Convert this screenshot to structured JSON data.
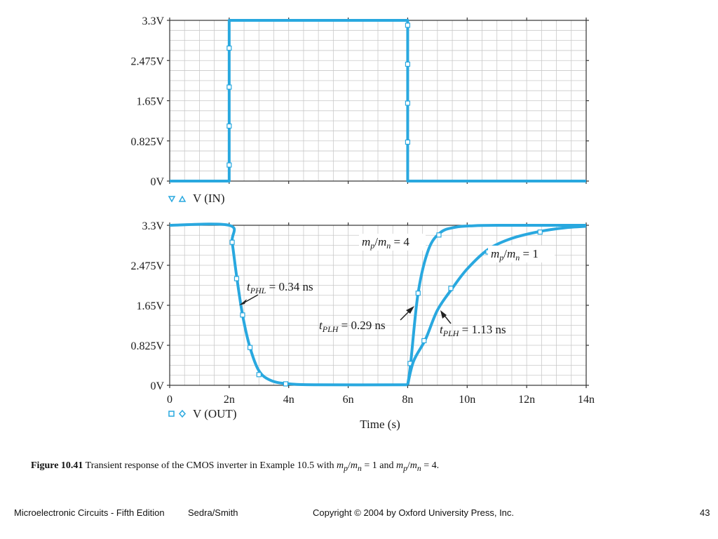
{
  "colors": {
    "trace": "#29a8df",
    "grid": "#c9c9c9",
    "axis": "#333333"
  },
  "chart_data": [
    {
      "type": "line",
      "panel": "input",
      "yticks": [
        "0V",
        "0.825V",
        "1.65V",
        "2.475V",
        "3.3V"
      ],
      "ytick_values": [
        0,
        0.825,
        1.65,
        2.475,
        3.3
      ],
      "xlim": [
        0,
        14
      ],
      "ylim": [
        0,
        3.3
      ],
      "grid": true,
      "legend": "V (IN)",
      "legend_markers": [
        "inverted-triangle",
        "triangle"
      ],
      "series": [
        {
          "x": [
            0,
            2,
            2,
            8,
            8,
            14
          ],
          "y": [
            0,
            0,
            3.3,
            3.3,
            0,
            0
          ],
          "marker_x": [
            2,
            2,
            2,
            2,
            8,
            8,
            8,
            8
          ],
          "marker_y": [
            0.33,
            1.13,
            1.93,
            2.73,
            3.2,
            2.4,
            1.6,
            0.8
          ]
        }
      ]
    },
    {
      "type": "line",
      "panel": "output",
      "xticks": [
        "0",
        "2n",
        "4n",
        "6n",
        "8n",
        "10n",
        "12n",
        "14n"
      ],
      "xtick_values": [
        0,
        2,
        4,
        6,
        8,
        10,
        12,
        14
      ],
      "yticks": [
        "0V",
        "0.825V",
        "1.65V",
        "2.475V",
        "3.3V"
      ],
      "ytick_values": [
        0,
        0.825,
        1.65,
        2.475,
        3.3
      ],
      "xlabel": "Time (s)",
      "xlim": [
        0,
        14
      ],
      "ylim": [
        0,
        3.3
      ],
      "grid": true,
      "legend": "V (OUT)",
      "legend_markers": [
        "square",
        "diamond"
      ],
      "series": [
        {
          "x": [
            0,
            2,
            2.1,
            2.25,
            2.45,
            2.7,
            3.0,
            3.4,
            4.0,
            5.0,
            8.0
          ],
          "y": [
            3.3,
            3.3,
            2.95,
            2.25,
            1.45,
            0.78,
            0.3,
            0.1,
            0.03,
            0.01,
            0.01
          ],
          "marker_x": [
            2.1,
            2.25,
            2.45,
            2.7,
            3.0,
            3.9
          ],
          "marker_y": [
            2.95,
            2.2,
            1.45,
            0.78,
            0.22,
            0.03
          ]
        },
        {
          "x": [
            8,
            8.1,
            8.35,
            8.7,
            9.1,
            9.6,
            10.2,
            11.0,
            14.0
          ],
          "y": [
            0.01,
            0.45,
            1.9,
            2.8,
            3.15,
            3.26,
            3.29,
            3.3,
            3.3
          ],
          "marker_x": [
            8.08,
            8.35,
            9.05
          ],
          "marker_y": [
            0.45,
            1.9,
            3.1
          ]
        },
        {
          "x": [
            8,
            8.2,
            8.6,
            9.0,
            9.5,
            10.0,
            10.7,
            11.5,
            12.5,
            13.3,
            14.0
          ],
          "y": [
            0.01,
            0.5,
            0.95,
            1.55,
            2.0,
            2.4,
            2.8,
            3.03,
            3.18,
            3.25,
            3.28
          ],
          "marker_x": [
            8.55,
            9.45,
            10.7,
            12.45
          ],
          "marker_y": [
            0.92,
            2.0,
            2.75,
            3.16
          ]
        }
      ],
      "annotations": {
        "tphl": {
          "sym": "t",
          "sub": "PHL",
          "rest": " = 0.34 ns",
          "x": 2.47,
          "y": 1.65
        },
        "tplh4": {
          "sym": "t",
          "sub": "PLH",
          "rest": " = 0.29 ns",
          "x": 8.27,
          "y": 1.65
        },
        "tplh1": {
          "sym": "t",
          "sub": "PLH",
          "rest": " = 1.13 ns",
          "x": 9.1,
          "y": 1.65
        },
        "ratio4": {
          "m1": "m",
          "s1": "p",
          "slash": "/",
          "m2": "m",
          "s2": "n",
          "rest": " = 4"
        },
        "ratio1": {
          "m1": "m",
          "s1": "p",
          "slash": "/",
          "m2": "m",
          "s2": "n",
          "rest": " = 1"
        }
      }
    }
  ],
  "caption": {
    "fig": "Figure 10.41",
    "text1": "  Transient response of the CMOS inverter in Example 10.5 with ",
    "m1": "m",
    "s1": "p",
    "slash": "/",
    "m2": "m",
    "s2": "n",
    "eq1": " = 1 and ",
    "eq2": " = 4."
  },
  "footer": {
    "book": "Microelectronic Circuits - Fifth Edition",
    "authors": "Sedra/Smith",
    "copyright": "Copyright © 2004 by Oxford University Press, Inc.",
    "page": "43"
  }
}
